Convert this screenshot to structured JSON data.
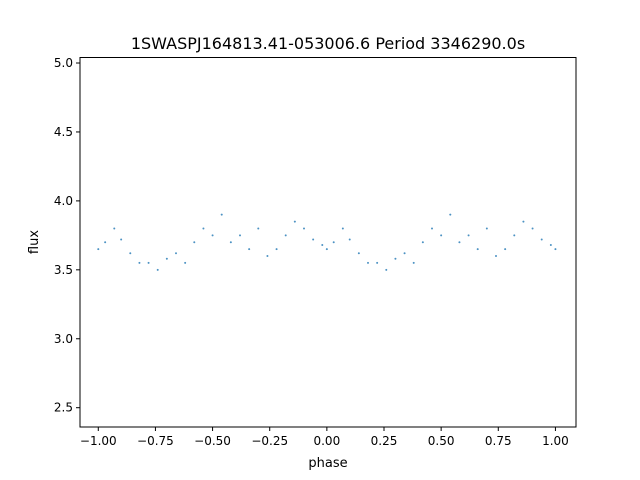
{
  "chart_data": {
    "type": "scatter",
    "title": "1SWASPJ164813.41-053006.6 Period 3346290.0s",
    "xlabel": "phase",
    "ylabel": "flux",
    "xlim": [
      -1.08,
      1.09
    ],
    "ylim": [
      2.36,
      5.04
    ],
    "xticks": [
      -1.0,
      -0.75,
      -0.5,
      -0.25,
      0.0,
      0.25,
      0.5,
      0.75,
      1.0
    ],
    "xtick_labels": [
      "−1.00",
      "−0.75",
      "−0.50",
      "−0.25",
      "0.00",
      "0.25",
      "0.50",
      "0.75",
      "1.00"
    ],
    "yticks": [
      2.5,
      3.0,
      3.5,
      4.0,
      4.5,
      5.0
    ],
    "ytick_labels": [
      "2.5",
      "3.0",
      "3.5",
      "4.0",
      "4.5",
      "5.0"
    ],
    "grid": false,
    "point_color": "#1f77b4",
    "series": [
      {
        "points": [
          [
            -1.0,
            3.65
          ],
          [
            -0.97,
            3.7
          ],
          [
            -0.93,
            3.8
          ],
          [
            -0.9,
            3.72
          ],
          [
            -0.86,
            3.62
          ],
          [
            -0.82,
            3.55
          ],
          [
            -0.78,
            3.55
          ],
          [
            -0.74,
            3.5
          ],
          [
            -0.7,
            3.58
          ],
          [
            -0.66,
            3.62
          ],
          [
            -0.62,
            3.55
          ],
          [
            -0.58,
            3.7
          ],
          [
            -0.54,
            3.8
          ],
          [
            -0.5,
            3.75
          ],
          [
            -0.46,
            3.9
          ],
          [
            -0.42,
            3.7
          ],
          [
            -0.38,
            3.75
          ],
          [
            -0.34,
            3.65
          ],
          [
            -0.3,
            3.8
          ],
          [
            -0.26,
            3.6
          ],
          [
            -0.22,
            3.65
          ],
          [
            -0.18,
            3.75
          ],
          [
            -0.14,
            3.85
          ],
          [
            -0.1,
            3.8
          ],
          [
            -0.06,
            3.72
          ],
          [
            -0.02,
            3.68
          ],
          [
            0.0,
            3.65
          ],
          [
            0.03,
            3.7
          ],
          [
            0.07,
            3.8
          ],
          [
            0.1,
            3.72
          ],
          [
            0.14,
            3.62
          ],
          [
            0.18,
            3.55
          ],
          [
            0.22,
            3.55
          ],
          [
            0.26,
            3.5
          ],
          [
            0.3,
            3.58
          ],
          [
            0.34,
            3.62
          ],
          [
            0.38,
            3.55
          ],
          [
            0.42,
            3.7
          ],
          [
            0.46,
            3.8
          ],
          [
            0.5,
            3.75
          ],
          [
            0.54,
            3.9
          ],
          [
            0.58,
            3.7
          ],
          [
            0.62,
            3.75
          ],
          [
            0.66,
            3.65
          ],
          [
            0.7,
            3.8
          ],
          [
            0.74,
            3.6
          ],
          [
            0.78,
            3.65
          ],
          [
            0.82,
            3.75
          ],
          [
            0.86,
            3.85
          ],
          [
            0.9,
            3.8
          ],
          [
            0.94,
            3.72
          ],
          [
            0.98,
            3.68
          ],
          [
            1.0,
            3.65
          ]
        ]
      }
    ]
  }
}
